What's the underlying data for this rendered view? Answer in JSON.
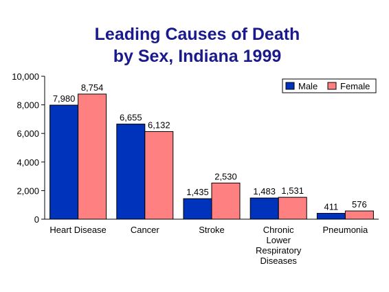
{
  "chart_data": {
    "type": "bar",
    "title_lines": [
      "Leading Causes of Death",
      "by Sex, Indiana 1999"
    ],
    "categories": [
      [
        "Heart Disease"
      ],
      [
        "Cancer"
      ],
      [
        "Stroke"
      ],
      [
        "Chronic",
        "Lower",
        "Respiratory",
        "Diseases"
      ],
      [
        "Pneumonia"
      ]
    ],
    "series": [
      {
        "name": "Male",
        "color": "#0033bb",
        "values": [
          7980,
          6655,
          1435,
          1483,
          411
        ],
        "labels": [
          "7,980",
          "6,655",
          "1,435",
          "1,483",
          "411"
        ]
      },
      {
        "name": "Female",
        "color": "#ff8080",
        "values": [
          8754,
          6132,
          2530,
          1531,
          576
        ],
        "labels": [
          "8,754",
          "6,132",
          "2,530",
          "1,531",
          "576"
        ]
      }
    ],
    "yticks": [
      0,
      2000,
      4000,
      6000,
      8000,
      10000
    ],
    "ytick_labels": [
      "0",
      "2,000",
      "4,000",
      "6,000",
      "8,000",
      "10,000"
    ],
    "ylim": [
      0,
      10000
    ],
    "legend_position": "top-right",
    "grid": false
  }
}
